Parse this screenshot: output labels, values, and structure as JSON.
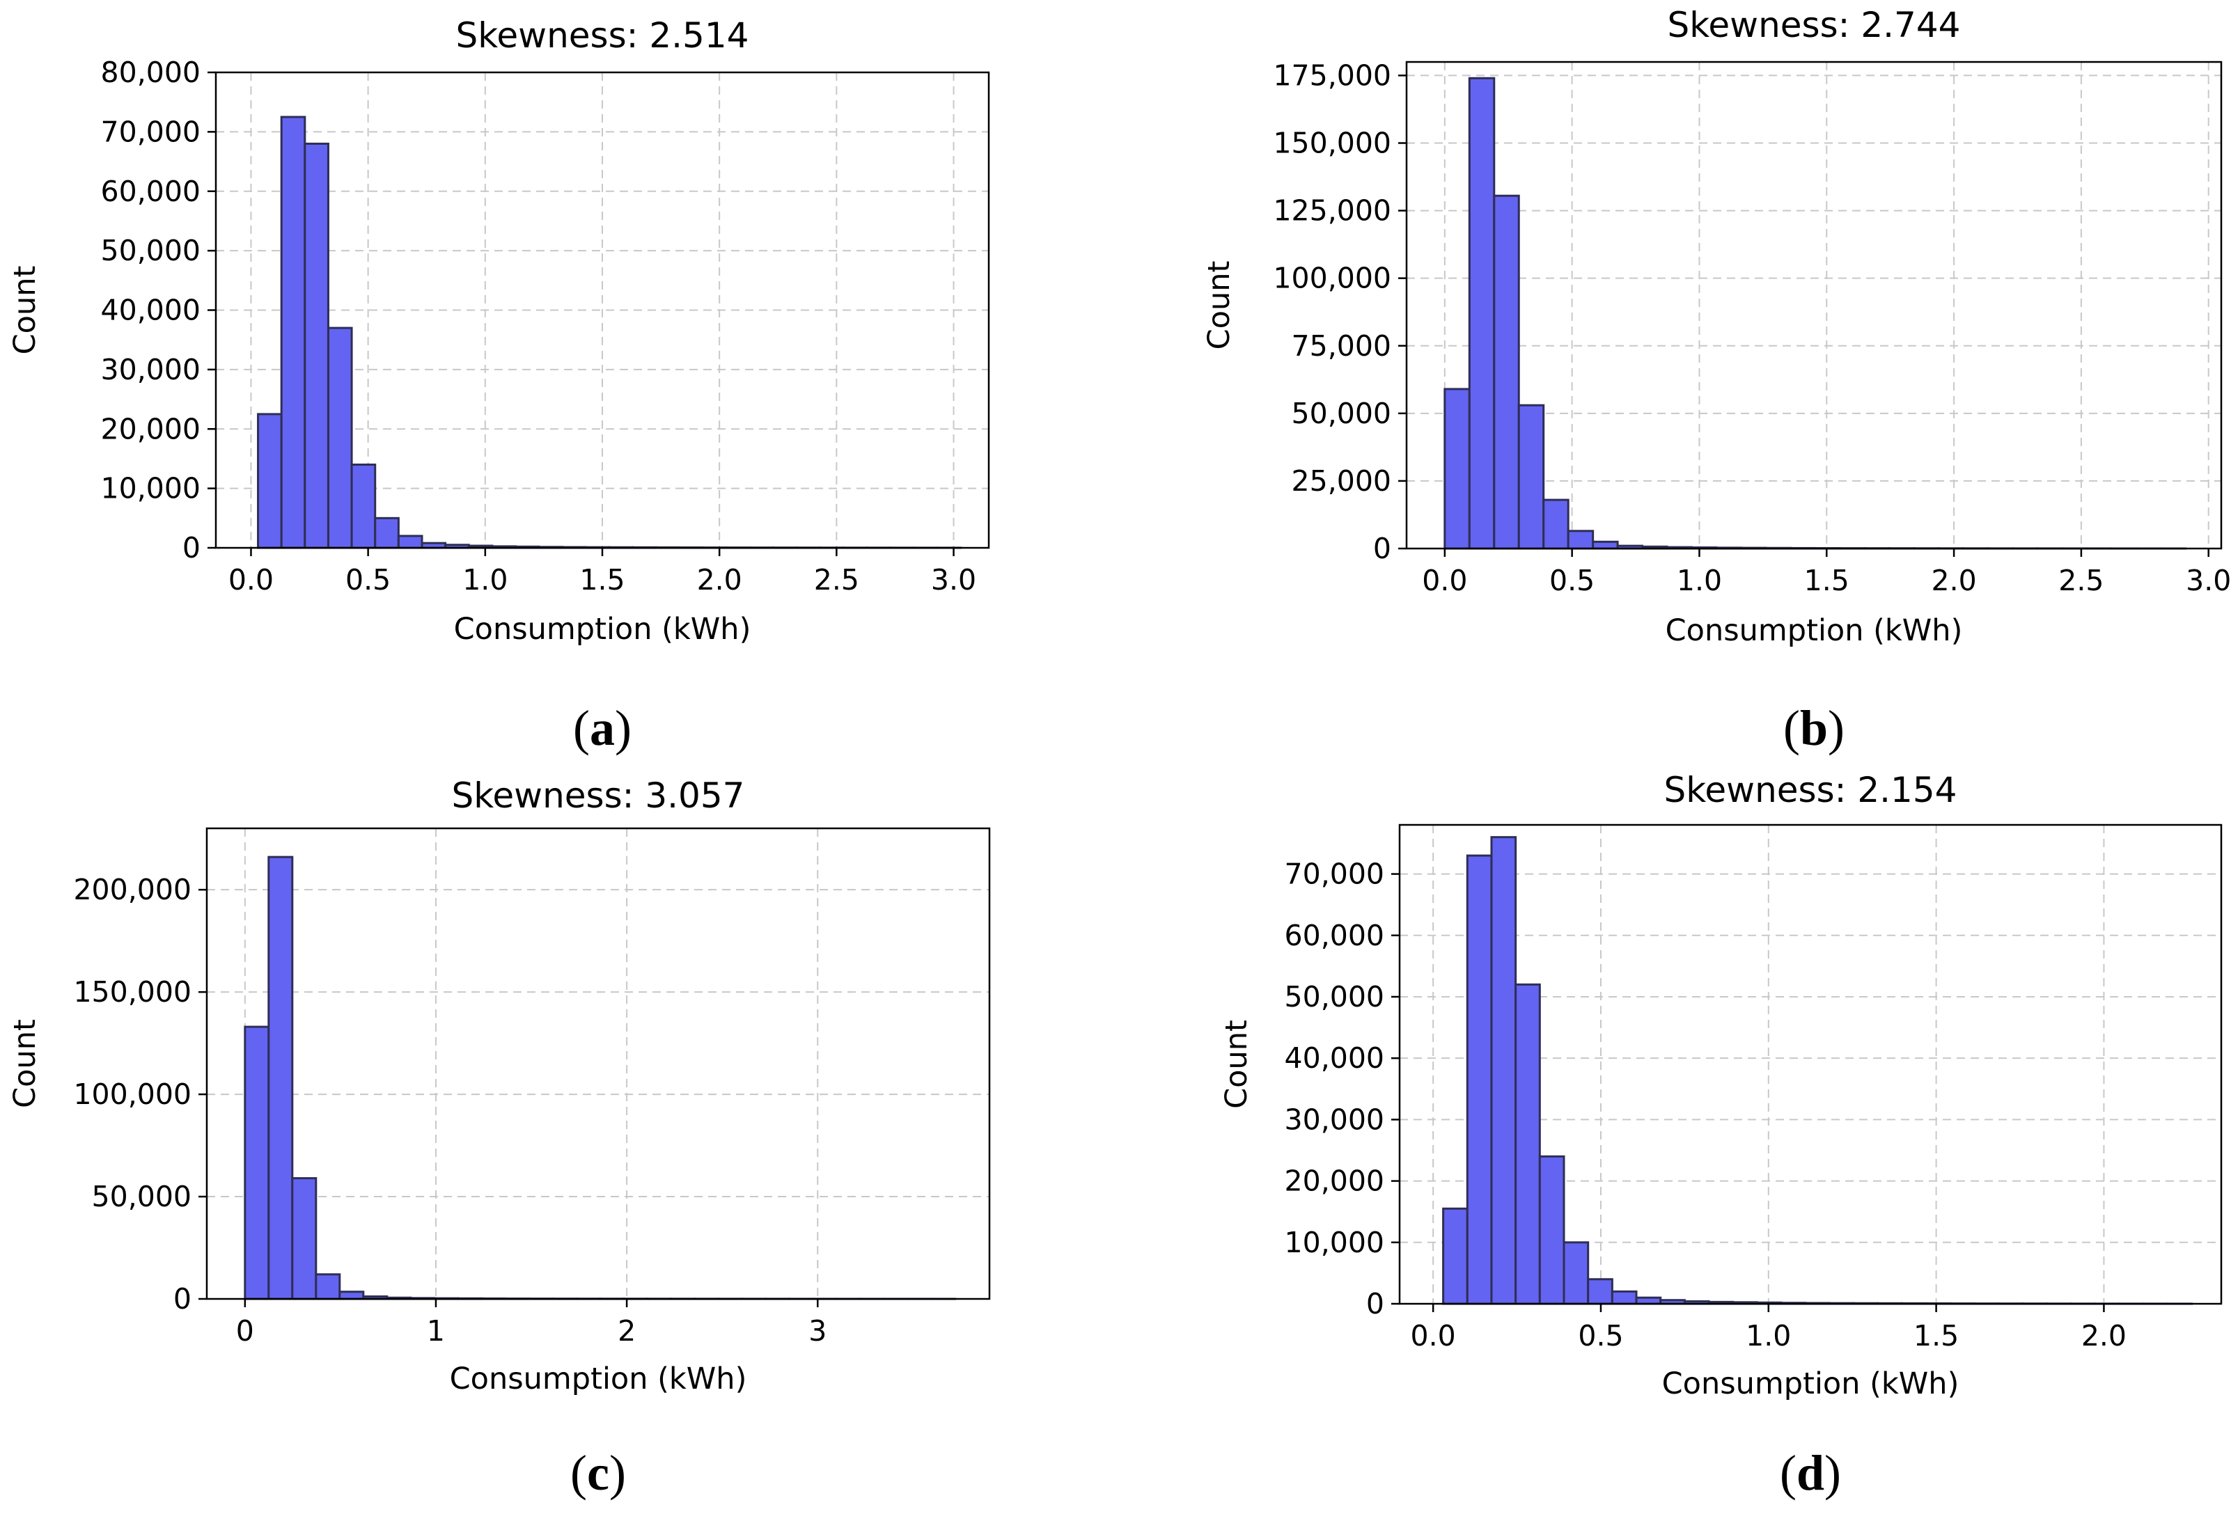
{
  "colors": {
    "bar_fill": "#6464f2",
    "bar_edge": "#2e2e55",
    "grid": "#c8c8c8",
    "axis": "#000000"
  },
  "chart_data": [
    {
      "type": "bar",
      "caption": "a",
      "title": "Skewness: 2.514",
      "xlabel": "Consumption (kWh)",
      "ylabel": "Count",
      "xlim": [
        -0.15,
        3.15
      ],
      "ylim": [
        0,
        80000
      ],
      "xticks": [
        0.0,
        0.5,
        1.0,
        1.5,
        2.0,
        2.5,
        3.0
      ],
      "xtick_labels": [
        "0.0",
        "0.5",
        "1.0",
        "1.5",
        "2.0",
        "2.5",
        "3.0"
      ],
      "yticks": [
        0,
        10000,
        20000,
        30000,
        40000,
        50000,
        60000,
        70000,
        80000
      ],
      "ytick_labels": [
        "0",
        "10,000",
        "20,000",
        "30,000",
        "40,000",
        "50,000",
        "60,000",
        "70,000",
        "80,000"
      ],
      "bin_start": 0.03,
      "bin_width": 0.1,
      "values": [
        22500,
        72500,
        68000,
        37000,
        14000,
        5000,
        2000,
        800,
        500,
        350,
        250,
        200,
        150,
        120,
        100,
        90,
        80,
        70,
        60,
        50,
        45,
        40,
        35,
        30,
        25,
        20,
        18,
        15,
        12,
        10
      ]
    },
    {
      "type": "bar",
      "caption": "b",
      "title": "Skewness: 2.744",
      "xlabel": "Consumption (kWh)",
      "ylabel": "Count",
      "xlim": [
        -0.15,
        3.05
      ],
      "ylim": [
        0,
        180000
      ],
      "xticks": [
        0.0,
        0.5,
        1.0,
        1.5,
        2.0,
        2.5,
        3.0
      ],
      "xtick_labels": [
        "0.0",
        "0.5",
        "1.0",
        "1.5",
        "2.0",
        "2.5",
        "3.0"
      ],
      "yticks": [
        0,
        25000,
        50000,
        75000,
        100000,
        125000,
        150000,
        175000
      ],
      "ytick_labels": [
        "0",
        "25,000",
        "50,000",
        "75,000",
        "100,000",
        "125,000",
        "150,000",
        "175,000"
      ],
      "bin_start": 0.0,
      "bin_width": 0.097,
      "values": [
        59000,
        174000,
        130500,
        53000,
        18000,
        6500,
        2500,
        1000,
        700,
        500,
        400,
        300,
        250,
        200,
        150,
        120,
        100,
        90,
        80,
        70,
        60,
        50,
        40,
        35,
        30,
        25,
        20,
        15,
        12,
        10
      ]
    },
    {
      "type": "bar",
      "caption": "c",
      "title": "Skewness: 3.057",
      "xlabel": "Consumption (kWh)",
      "ylabel": "Count",
      "xlim": [
        -0.2,
        3.9
      ],
      "ylim": [
        0,
        230000
      ],
      "xticks": [
        0,
        1,
        2,
        3
      ],
      "xtick_labels": [
        "0",
        "1",
        "2",
        "3"
      ],
      "yticks": [
        0,
        50000,
        100000,
        150000,
        200000
      ],
      "ytick_labels": [
        "0",
        "50,000",
        "100,000",
        "150,000",
        "200,000"
      ],
      "bin_start": 0.0,
      "bin_width": 0.124,
      "values": [
        133000,
        216000,
        59000,
        12000,
        3500,
        1200,
        600,
        400,
        300,
        250,
        200,
        150,
        120,
        100,
        90,
        80,
        70,
        60,
        50,
        45,
        40,
        35,
        30,
        25,
        20,
        18,
        15,
        12,
        10,
        8
      ]
    },
    {
      "type": "bar",
      "caption": "d",
      "title": "Skewness: 2.154",
      "xlabel": "Consumption (kWh)",
      "ylabel": "Count",
      "xlim": [
        -0.1,
        2.35
      ],
      "ylim": [
        0,
        78000
      ],
      "xticks": [
        0.0,
        0.5,
        1.0,
        1.5,
        2.0
      ],
      "xtick_labels": [
        "0.0",
        "0.5",
        "1.0",
        "1.5",
        "2.0"
      ],
      "yticks": [
        0,
        10000,
        20000,
        30000,
        40000,
        50000,
        60000,
        70000
      ],
      "ytick_labels": [
        "0",
        "10,000",
        "20,000",
        "30,000",
        "40,000",
        "50,000",
        "60,000",
        "70,000"
      ],
      "bin_start": 0.03,
      "bin_width": 0.072,
      "values": [
        15500,
        73000,
        76000,
        52000,
        24000,
        10000,
        4000,
        2000,
        1000,
        600,
        400,
        300,
        250,
        200,
        150,
        120,
        100,
        90,
        80,
        70,
        60,
        50,
        40,
        35,
        30,
        25,
        20,
        15,
        12,
        10,
        8
      ]
    }
  ]
}
